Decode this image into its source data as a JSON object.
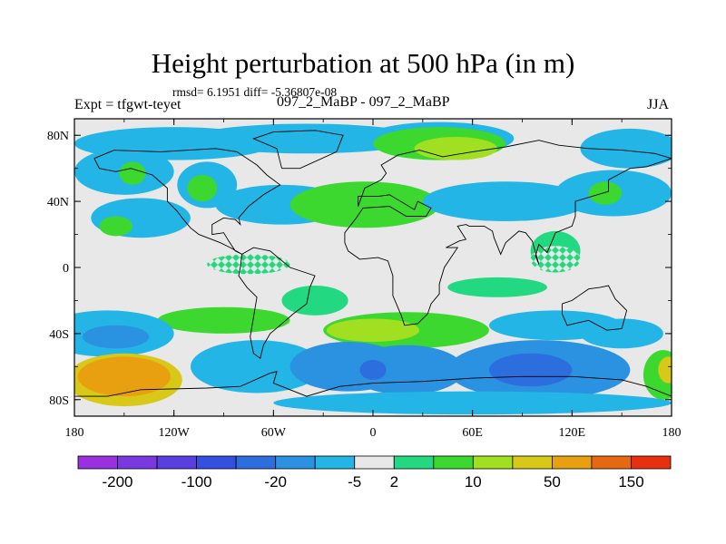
{
  "header": {
    "title": "Height perturbation at 500 hPa (in m)",
    "stats": "rmsd= 6.1951 diff= -5.36807e-08",
    "experiment": "Expt = tfgwt-teyet",
    "runs": "097_2_MaBP - 097_2_MaBP",
    "season": "JJA"
  },
  "chart_data": {
    "type": "heatmap",
    "title": "Height perturbation at 500 hPa (in m)",
    "x_axis": {
      "range": [
        -180,
        180
      ],
      "ticks": [
        {
          "value": -180,
          "label": "180"
        },
        {
          "value": -120,
          "label": "120W"
        },
        {
          "value": -60,
          "label": "60W"
        },
        {
          "value": 0,
          "label": "0"
        },
        {
          "value": 60,
          "label": "60E"
        },
        {
          "value": 120,
          "label": "120E"
        },
        {
          "value": 180,
          "label": "180"
        }
      ]
    },
    "y_axis": {
      "range": [
        -90,
        90
      ],
      "ticks": [
        {
          "value": 80,
          "label": "80N"
        },
        {
          "value": 40,
          "label": "40N"
        },
        {
          "value": 0,
          "label": "0"
        },
        {
          "value": -40,
          "label": "40S"
        },
        {
          "value": -80,
          "label": "80S"
        }
      ]
    },
    "colorbar": {
      "colors": [
        "#9a30e0",
        "#7a38e0",
        "#5a3fe0",
        "#3550e0",
        "#2d6ede",
        "#2a92e0",
        "#22b5e6",
        "#e8e8e8",
        "#22d880",
        "#3cd830",
        "#a0e020",
        "#d8c818",
        "#e8a010",
        "#e86810",
        "#e83010"
      ],
      "labels": [
        {
          "boundary": 1,
          "text": "-200"
        },
        {
          "boundary": 3,
          "text": "-100"
        },
        {
          "boundary": 5,
          "text": "-20"
        },
        {
          "boundary": 7,
          "text": "-5"
        },
        {
          "boundary": 8,
          "text": "2"
        },
        {
          "boundary": 10,
          "text": "10"
        },
        {
          "boundary": 12,
          "text": "50"
        },
        {
          "boundary": 14,
          "text": "150"
        }
      ]
    },
    "regions": [
      {
        "lon": -40,
        "lat": 78,
        "rlon": 70,
        "rlat": 9,
        "level": 6,
        "name": "arctic-low-atlantic"
      },
      {
        "lon": -120,
        "lat": 75,
        "rlon": 60,
        "rlat": 10,
        "level": 6,
        "name": "arctic-low-pacific"
      },
      {
        "lon": -150,
        "lat": 58,
        "rlon": 30,
        "rlat": 14,
        "level": 6,
        "name": "north-pacific-low"
      },
      {
        "lon": -145,
        "lat": 57,
        "rlon": 8,
        "rlat": 7,
        "level": 9,
        "name": "north-pacific-high-cell"
      },
      {
        "lon": -100,
        "lat": 50,
        "rlon": 18,
        "rlat": 14,
        "level": 6,
        "name": "canada-low"
      },
      {
        "lon": -103,
        "lat": 48,
        "rlon": 9,
        "rlat": 8,
        "level": 9,
        "name": "canada-high-cell"
      },
      {
        "lon": -140,
        "lat": 30,
        "rlon": 30,
        "rlat": 12,
        "level": 6,
        "name": "subtropical-pacific-low"
      },
      {
        "lon": -155,
        "lat": 25,
        "rlon": 10,
        "rlat": 6,
        "level": 9,
        "name": "subtropical-pacific-cell"
      },
      {
        "lon": -55,
        "lat": 38,
        "rlon": 40,
        "rlat": 12,
        "level": 6,
        "name": "atlantic-low"
      },
      {
        "lon": -5,
        "lat": 38,
        "rlon": 45,
        "rlat": 14,
        "level": 9,
        "name": "europe-high"
      },
      {
        "lon": 40,
        "lat": 78,
        "rlon": 45,
        "rlat": 10,
        "level": 6,
        "name": "arctic-low-east"
      },
      {
        "lon": 40,
        "lat": 75,
        "rlon": 40,
        "rlat": 10,
        "level": 9,
        "name": "barents-high"
      },
      {
        "lon": 50,
        "lat": 72,
        "rlon": 25,
        "rlat": 7,
        "level": 10,
        "name": "barents-high-core"
      },
      {
        "lon": 155,
        "lat": 72,
        "rlon": 30,
        "rlat": 12,
        "level": 6,
        "name": "east-siberia-low"
      },
      {
        "lon": 80,
        "lat": 40,
        "rlon": 50,
        "rlat": 12,
        "level": 6,
        "name": "central-asia-low"
      },
      {
        "lon": 145,
        "lat": 45,
        "rlon": 35,
        "rlat": 14,
        "level": 6,
        "name": "north-pacific-west-low"
      },
      {
        "lon": 140,
        "lat": 45,
        "rlon": 10,
        "rlat": 7,
        "level": 9,
        "name": "north-pacific-west-cell"
      },
      {
        "lon": 110,
        "lat": 10,
        "rlon": 15,
        "rlat": 12,
        "level": 8,
        "name": "maritime-hatched-high"
      },
      {
        "lon": 75,
        "lat": -12,
        "rlon": 30,
        "rlat": 6,
        "level": 8,
        "name": "indian-ocean-hatched-high"
      },
      {
        "lon": -35,
        "lat": -20,
        "rlon": 20,
        "rlat": 9,
        "level": 8,
        "name": "south-atlantic-hatched-high"
      },
      {
        "lon": -90,
        "lat": -32,
        "rlon": 40,
        "rlat": 8,
        "level": 9,
        "name": "south-pacific-ridge"
      },
      {
        "lon": 20,
        "lat": -38,
        "rlon": 50,
        "rlat": 11,
        "level": 9,
        "name": "south-africa-ridge"
      },
      {
        "lon": 0,
        "lat": -38,
        "rlon": 28,
        "rlat": 7,
        "level": 10,
        "name": "south-atlantic-high-core"
      },
      {
        "lon": 110,
        "lat": -35,
        "rlon": 40,
        "rlat": 9,
        "level": 6,
        "name": "indian-ocean-low"
      },
      {
        "lon": 150,
        "lat": -40,
        "rlon": 25,
        "rlat": 9,
        "level": 6,
        "name": "tasman-low"
      },
      {
        "lon": -160,
        "lat": -40,
        "rlon": 40,
        "rlat": 14,
        "level": 6,
        "name": "southwest-pacific-low"
      },
      {
        "lon": -155,
        "lat": -42,
        "rlon": 20,
        "rlat": 7,
        "level": 5,
        "name": "southwest-pacific-low-core"
      },
      {
        "lon": -70,
        "lat": -60,
        "rlon": 40,
        "rlat": 16,
        "level": 6,
        "name": "south-america-low"
      },
      {
        "lon": -15,
        "lat": -60,
        "rlon": 35,
        "rlat": 15,
        "level": 5,
        "name": "weddell-low"
      },
      {
        "lon": 20,
        "lat": -62,
        "rlon": 35,
        "rlat": 15,
        "level": 5,
        "name": "south-africa-low"
      },
      {
        "lon": 100,
        "lat": -62,
        "rlon": 55,
        "rlat": 18,
        "level": 5,
        "name": "indian-southern-low"
      },
      {
        "lon": 95,
        "lat": -62,
        "rlon": 25,
        "rlat": 10,
        "level": 4,
        "name": "indian-southern-low-core"
      },
      {
        "lon": 0,
        "lat": -62,
        "rlon": 8,
        "rlat": 6,
        "level": 4,
        "name": "weddell-low-core"
      },
      {
        "lon": -150,
        "lat": -68,
        "rlon": 35,
        "rlat": 16,
        "level": 11,
        "name": "amundsen-high"
      },
      {
        "lon": -150,
        "lat": -66,
        "rlon": 28,
        "rlat": 12,
        "level": 12,
        "name": "amundsen-high-core"
      },
      {
        "lon": 175,
        "lat": -65,
        "rlon": 12,
        "rlat": 15,
        "level": 9,
        "name": "dateline-high"
      },
      {
        "lon": 178,
        "lat": -62,
        "rlon": 6,
        "rlat": 8,
        "level": 11,
        "name": "dateline-high-core"
      },
      {
        "lon": 60,
        "lat": -82,
        "rlon": 120,
        "rlat": 7,
        "level": 6,
        "name": "antarctic-low"
      }
    ],
    "hatched_areas": [
      {
        "lon": -75,
        "lat": 2,
        "rlon": 25,
        "rlat": 6,
        "name": "equatorial-hatch-west"
      },
      {
        "lon": 110,
        "lat": 5,
        "rlon": 15,
        "rlat": 8,
        "name": "equatorial-hatch-east"
      }
    ],
    "continent_outlines": [
      {
        "name": "north-america",
        "points": [
          [
            -168,
            66
          ],
          [
            -156,
            71
          ],
          [
            -128,
            70
          ],
          [
            -95,
            72
          ],
          [
            -82,
            70
          ],
          [
            -70,
            62
          ],
          [
            -64,
            56
          ],
          [
            -56,
            50
          ],
          [
            -66,
            44
          ],
          [
            -75,
            37
          ],
          [
            -81,
            30
          ],
          [
            -80,
            26
          ],
          [
            -83,
            29
          ],
          [
            -90,
            30
          ],
          [
            -97,
            26
          ],
          [
            -97,
            20
          ],
          [
            -90,
            21
          ],
          [
            -87,
            16
          ],
          [
            -83,
            10
          ],
          [
            -79,
            8
          ],
          [
            -86,
            12
          ],
          [
            -92,
            15
          ],
          [
            -105,
            20
          ],
          [
            -110,
            24
          ],
          [
            -115,
            30
          ],
          [
            -118,
            34
          ],
          [
            -124,
            40
          ],
          [
            -124,
            48
          ],
          [
            -133,
            56
          ],
          [
            -146,
            60
          ],
          [
            -155,
            58
          ],
          [
            -165,
            60
          ],
          [
            -168,
            66
          ]
        ]
      },
      {
        "name": "south-america",
        "points": [
          [
            -79,
            8
          ],
          [
            -72,
            12
          ],
          [
            -62,
            10
          ],
          [
            -50,
            0
          ],
          [
            -35,
            -5
          ],
          [
            -38,
            -12
          ],
          [
            -40,
            -22
          ],
          [
            -48,
            -28
          ],
          [
            -56,
            -35
          ],
          [
            -62,
            -40
          ],
          [
            -66,
            -47
          ],
          [
            -68,
            -55
          ],
          [
            -72,
            -52
          ],
          [
            -74,
            -42
          ],
          [
            -72,
            -30
          ],
          [
            -70,
            -18
          ],
          [
            -76,
            -12
          ],
          [
            -81,
            -5
          ],
          [
            -80,
            0
          ],
          [
            -79,
            8
          ]
        ]
      },
      {
        "name": "greenland",
        "points": [
          [
            -55,
            60
          ],
          [
            -44,
            60
          ],
          [
            -22,
            70
          ],
          [
            -18,
            80
          ],
          [
            -35,
            83
          ],
          [
            -60,
            82
          ],
          [
            -72,
            78
          ],
          [
            -58,
            72
          ],
          [
            -55,
            60
          ]
        ]
      },
      {
        "name": "africa-eurasia",
        "points": [
          [
            -17,
            15
          ],
          [
            -17,
            21
          ],
          [
            -10,
            30
          ],
          [
            -6,
            36
          ],
          [
            10,
            37
          ],
          [
            20,
            31
          ],
          [
            32,
            31
          ],
          [
            35,
            36
          ],
          [
            27,
            40
          ],
          [
            25,
            35
          ],
          [
            10,
            44
          ],
          [
            3,
            43
          ],
          [
            -9,
            43
          ],
          [
            -9,
            37
          ],
          [
            -5,
            48
          ],
          [
            5,
            53
          ],
          [
            8,
            57
          ],
          [
            5,
            62
          ],
          [
            15,
            68
          ],
          [
            28,
            71
          ],
          [
            42,
            67
          ],
          [
            60,
            70
          ],
          [
            80,
            73
          ],
          [
            100,
            77
          ],
          [
            112,
            74
          ],
          [
            130,
            72
          ],
          [
            150,
            71
          ],
          [
            170,
            69
          ],
          [
            180,
            66
          ],
          [
            165,
            61
          ],
          [
            155,
            60
          ],
          [
            142,
            53
          ],
          [
            142,
            46
          ],
          [
            132,
            43
          ],
          [
            122,
            40
          ],
          [
            122,
            31
          ],
          [
            120,
            25
          ],
          [
            110,
            21
          ],
          [
            108,
            16
          ],
          [
            105,
            9
          ],
          [
            100,
            14
          ],
          [
            98,
            7
          ],
          [
            100,
            2
          ],
          [
            96,
            16
          ],
          [
            92,
            21
          ],
          [
            88,
            22
          ],
          [
            80,
            15
          ],
          [
            77,
            8
          ],
          [
            73,
            18
          ],
          [
            72,
            22
          ],
          [
            67,
            25
          ],
          [
            58,
            25
          ],
          [
            56,
            26
          ],
          [
            51,
            25
          ],
          [
            56,
            17
          ],
          [
            52,
            16
          ],
          [
            44,
            12
          ],
          [
            51,
            12
          ],
          [
            43,
            0
          ],
          [
            40,
            -10
          ],
          [
            40,
            -16
          ],
          [
            35,
            -22
          ],
          [
            33,
            -28
          ],
          [
            27,
            -34
          ],
          [
            19,
            -35
          ],
          [
            17,
            -29
          ],
          [
            12,
            -17
          ],
          [
            12,
            -5
          ],
          [
            9,
            4
          ],
          [
            3,
            6
          ],
          [
            -8,
            5
          ],
          [
            -15,
            10
          ],
          [
            -17,
            15
          ]
        ]
      },
      {
        "name": "australia",
        "points": [
          [
            114,
            -22
          ],
          [
            120,
            -20
          ],
          [
            130,
            -13
          ],
          [
            137,
            -12
          ],
          [
            142,
            -11
          ],
          [
            146,
            -19
          ],
          [
            153,
            -26
          ],
          [
            150,
            -37
          ],
          [
            141,
            -38
          ],
          [
            130,
            -32
          ],
          [
            117,
            -35
          ],
          [
            114,
            -28
          ],
          [
            114,
            -22
          ]
        ]
      },
      {
        "name": "antarctica",
        "points": [
          [
            -180,
            -78
          ],
          [
            -160,
            -78
          ],
          [
            -140,
            -74
          ],
          [
            -100,
            -73
          ],
          [
            -80,
            -72
          ],
          [
            -62,
            -64
          ],
          [
            -58,
            -63
          ],
          [
            -60,
            -70
          ],
          [
            -40,
            -78
          ],
          [
            -20,
            -72
          ],
          [
            0,
            -70
          ],
          [
            30,
            -69
          ],
          [
            60,
            -67
          ],
          [
            90,
            -66
          ],
          [
            120,
            -66
          ],
          [
            150,
            -68
          ],
          [
            165,
            -72
          ],
          [
            180,
            -78
          ]
        ]
      }
    ]
  }
}
